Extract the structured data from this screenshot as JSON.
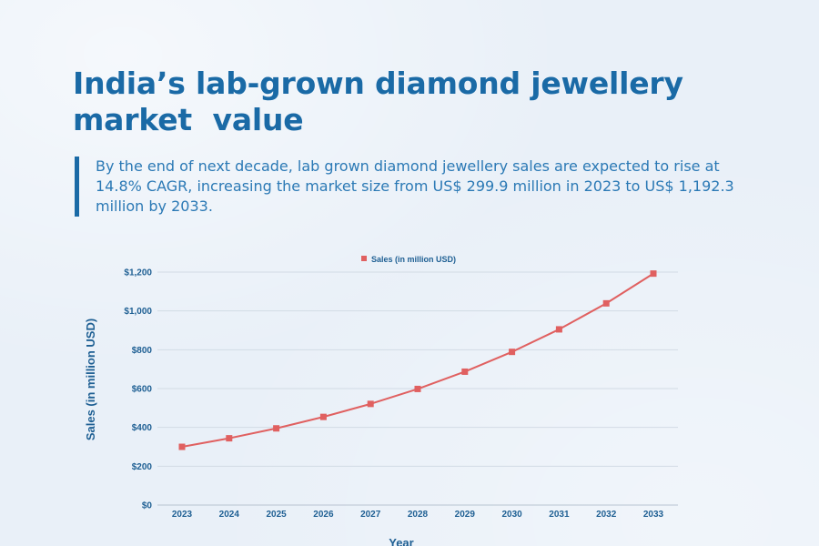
{
  "header": {
    "title": "India’s lab-grown diamond jewellery\nmarket  value",
    "subtitle": "By the end of next decade, lab grown diamond jewellery sales are expected to rise at 14.8% CAGR, increasing the market size from US$ 299.9 million in 2023 to US$ 1,192.3 million by 2033."
  },
  "colors": {
    "background": "#e9f0f8",
    "title": "#1a6aa6",
    "axis_text": "#1e5f93",
    "series": "#e06060",
    "grid": "#d2dbe5"
  },
  "chart_data": {
    "type": "line",
    "x": [
      "2023",
      "2024",
      "2025",
      "2026",
      "2027",
      "2028",
      "2029",
      "2030",
      "2031",
      "2032",
      "2033"
    ],
    "series": [
      {
        "name": "Sales (in million USD)",
        "values": [
          299.9,
          344,
          395,
          454,
          521,
          598,
          687,
          789,
          905,
          1039,
          1192.3
        ]
      }
    ],
    "xlabel": "Year",
    "ylabel": "Sales (in million USD)",
    "ylim": [
      0,
      1200
    ],
    "yticks": [
      0,
      200,
      400,
      600,
      800,
      1000,
      1200
    ],
    "ytick_labels": [
      "$0",
      "$200",
      "$400",
      "$600",
      "$800",
      "$1,000",
      "$1,200"
    ],
    "grid": true,
    "legend": "top-center",
    "marker": "square"
  }
}
